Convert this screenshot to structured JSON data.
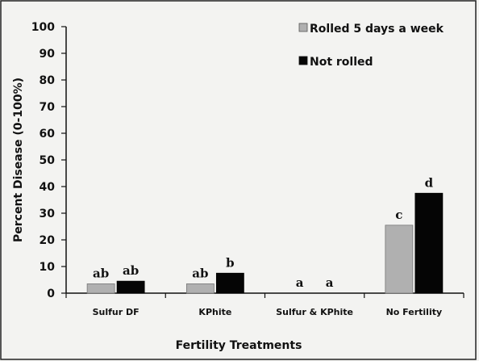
{
  "chart_data": {
    "type": "bar",
    "title": "",
    "xlabel": "Fertility Treatments",
    "ylabel": "Percent Disease (0-100%)",
    "ylim": [
      0,
      100
    ],
    "yticks": [
      "0",
      "10",
      "20",
      "30",
      "40",
      "50",
      "60",
      "70",
      "80",
      "90",
      "100"
    ],
    "categories": [
      "Sulfur DF",
      "KPhite",
      "Sulfur & KPhite",
      "No Fertility"
    ],
    "series": [
      {
        "name": "Rolled 5 days a week",
        "color": "#b0b0b0",
        "values": [
          3.5,
          3.5,
          0,
          25.5
        ],
        "labels": [
          "ab",
          "ab",
          "a",
          "c"
        ]
      },
      {
        "name": "Not rolled",
        "color": "#050505",
        "values": [
          4.5,
          7.5,
          0,
          37.5
        ],
        "labels": [
          "ab",
          "b",
          "a",
          "d"
        ]
      }
    ],
    "grid": false,
    "legend_position": "top-right"
  }
}
